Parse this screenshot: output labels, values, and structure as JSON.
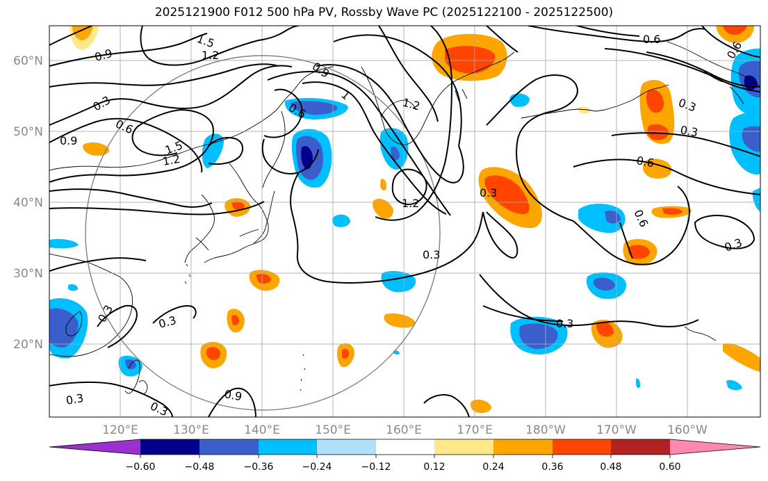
{
  "title": "2025121900 F012 500 hPa PV, Rossby Wave PC (2025122100 - 2025122500)",
  "lon_labels": [
    "120°E",
    "130°E",
    "140°E",
    "150°E",
    "160°E",
    "170°E",
    "180°W",
    "170°W",
    "160°W"
  ],
  "lat_labels": [
    "60°N",
    "50°N",
    "40°N",
    "30°N",
    "20°N"
  ],
  "colorbar": {
    "ticks": [
      "−0.60",
      "−0.48",
      "−0.36",
      "−0.24",
      "−0.12",
      "0.12",
      "0.24",
      "0.36",
      "0.48",
      "0.60"
    ],
    "colors": [
      "#9b30d0",
      "#00008b",
      "#3a5fcd",
      "#00bfff",
      "#b0e0fa",
      "#ffffff",
      "#ffe88a",
      "#ffa500",
      "#ff4500",
      "#b22222",
      "#ff88b0"
    ]
  },
  "contour_labels": [
    {
      "text": "1.5"
    },
    {
      "text": "1.2"
    },
    {
      "text": "0.9"
    },
    {
      "text": "0.3"
    },
    {
      "text": "0.6"
    },
    {
      "text": "0.9"
    },
    {
      "text": "1.5"
    },
    {
      "text": "1.2"
    },
    {
      "text": "0.9"
    },
    {
      "text": "0.6"
    },
    {
      "text": "1"
    },
    {
      "text": "1.2"
    },
    {
      "text": "1.2"
    },
    {
      "text": "0.3"
    },
    {
      "text": "0.3"
    },
    {
      "text": "0.3"
    },
    {
      "text": "0.3"
    },
    {
      "text": "0.3"
    },
    {
      "text": "0.3"
    },
    {
      "text": "0.3"
    },
    {
      "text": "0.9"
    },
    {
      "text": "0.6"
    },
    {
      "text": "0.3"
    },
    {
      "text": "0.3"
    },
    {
      "text": "0.6"
    },
    {
      "text": "0.6"
    },
    {
      "text": "0.3"
    },
    {
      "text": "0.6"
    }
  ]
}
